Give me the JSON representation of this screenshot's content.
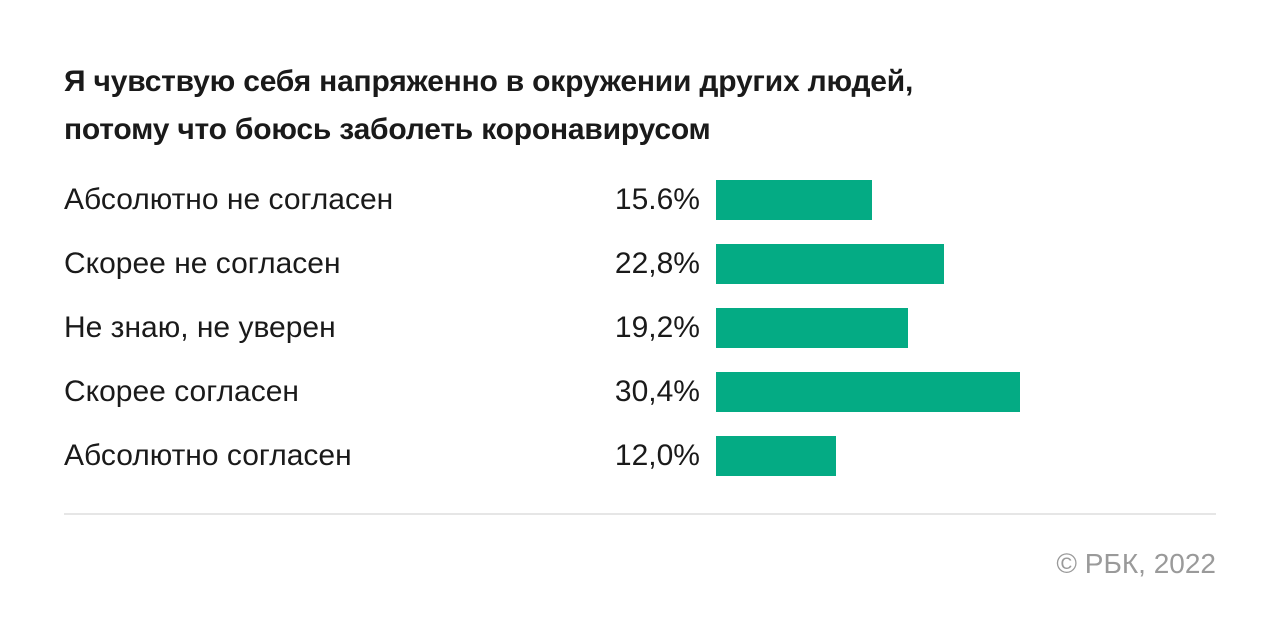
{
  "title_lines": [
    "Я чувствую себя напряженно в окружении других людей,",
    "потому что боюсь заболеть коронавирусом"
  ],
  "chart_data": {
    "type": "bar",
    "orientation": "horizontal",
    "title": "Я чувствую себя напряженно в окружении других людей, потому что боюсь заболеть коронавирусом",
    "categories": [
      "Абсолютно не согласен",
      "Скорее не согласен",
      "Не знаю, не уверен",
      "Скорее согласен",
      "Абсолютно согласен"
    ],
    "values": [
      15.6,
      22.8,
      19.2,
      30.4,
      12.0
    ],
    "value_labels": [
      "15.6%",
      "22,8%",
      "19,2%",
      "30,4%",
      "12,0%"
    ],
    "xlim": [
      0,
      40
    ],
    "bar_color": "#04ab84",
    "grid": false
  },
  "credit": "© РБК, 2022"
}
